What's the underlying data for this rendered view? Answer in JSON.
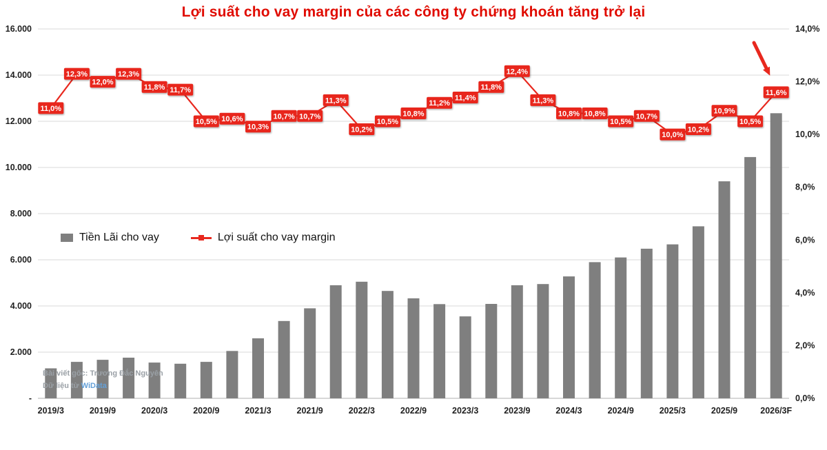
{
  "title": "Lợi suất cho vay margin của các công ty chứng khoán tăng trở lại",
  "legend": {
    "bar_label": "Tiền Lãi cho vay",
    "line_label": "Lợi suất cho vay margin"
  },
  "watermark": {
    "line1": "Bài viết gốc: Trương Đắc Nguyên",
    "line2_prefix": "Dữ liệu từ ",
    "brand": "WiData"
  },
  "colors": {
    "bar": "#7f7f7f",
    "line": "#e8281e",
    "label_bg": "#e8281e",
    "label_text": "#ffffff",
    "title": "#e00b00",
    "grid": "#d9d9d9",
    "baseline": "#bfbfbf",
    "axis_text": "#1f1f1f",
    "arrow": "#e8281e",
    "watermark_text": "#9aa0a6",
    "brand_blue": "#64a0d8"
  },
  "chart_data": {
    "type": "bar",
    "subtype": "combo_bar_line",
    "n_points": 29,
    "x_tick_every": 2,
    "x_tick_labels": [
      "2019/3",
      "2019/9",
      "2020/3",
      "2020/9",
      "2021/3",
      "2021/9",
      "2022/3",
      "2022/9",
      "2023/3",
      "2023/9",
      "2024/3",
      "2024/9",
      "2025/3",
      "2025/9",
      "2026/3F"
    ],
    "bar_series": {
      "name": "Tiền Lãi cho vay",
      "axis": "left",
      "values": [
        1300,
        1580,
        1670,
        1760,
        1550,
        1500,
        1580,
        2050,
        2600,
        3350,
        3900,
        4900,
        5050,
        4650,
        4330,
        4080,
        3550,
        4090,
        4900,
        4950,
        5280,
        5900,
        6100,
        6480,
        6670,
        7450,
        9400,
        10450,
        12350
      ]
    },
    "line_series": {
      "name": "Lợi suất cho vay margin",
      "axis": "right",
      "values_percent": [
        11.0,
        12.3,
        12.0,
        12.3,
        11.8,
        11.7,
        10.5,
        10.6,
        10.3,
        10.7,
        10.7,
        11.3,
        10.2,
        10.5,
        10.8,
        11.2,
        11.4,
        11.8,
        12.4,
        11.3,
        10.8,
        10.8,
        10.5,
        10.7,
        10.0,
        10.2,
        10.9,
        10.5,
        11.6
      ],
      "labels": [
        "11,0%",
        "12,3%",
        "12,0%",
        "12,3%",
        "11,8%",
        "11,7%",
        "10,5%",
        "10,6%",
        "10,3%",
        "10,7%",
        "10,7%",
        "11,3%",
        "10,2%",
        "10,5%",
        "10,8%",
        "11,2%",
        "11,4%",
        "11,8%",
        "12,4%",
        "11,3%",
        "10,8%",
        "10,8%",
        "10,5%",
        "10,7%",
        "10,0%",
        "10,2%",
        "10,9%",
        "10,5%",
        "11,6%"
      ],
      "highlight_last": true
    },
    "left_axis": {
      "min": 0,
      "max": 16000,
      "step": 2000,
      "tick_labels": [
        "-",
        "2.000",
        "4.000",
        "6.000",
        "8.000",
        "10.000",
        "12.000",
        "14.000",
        "16.000"
      ]
    },
    "right_axis": {
      "min": 0,
      "max": 14,
      "step": 2,
      "tick_labels": [
        "0,0%",
        "2,0%",
        "4,0%",
        "6,0%",
        "8,0%",
        "10,0%",
        "12,0%",
        "14,0%"
      ]
    },
    "grid": true,
    "legend_position": "middle-left",
    "annotation": "red arrow pointing to last data label"
  }
}
